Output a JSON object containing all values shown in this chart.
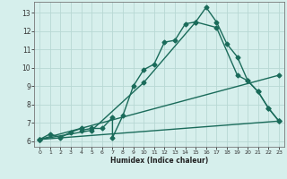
{
  "xlabel": "Humidex (Indice chaleur)",
  "bg_color": "#d6efec",
  "grid_color": "#b8d8d4",
  "line_color": "#1a6b5a",
  "xlim": [
    -0.5,
    23.5
  ],
  "ylim": [
    5.7,
    13.6
  ],
  "xticks": [
    0,
    1,
    2,
    3,
    4,
    5,
    6,
    7,
    8,
    9,
    10,
    11,
    12,
    13,
    14,
    15,
    16,
    17,
    18,
    19,
    20,
    21,
    22,
    23
  ],
  "yticks": [
    6,
    7,
    8,
    9,
    10,
    11,
    12,
    13
  ],
  "series1_x": [
    0,
    1,
    2,
    3,
    4,
    4,
    5,
    6,
    7,
    7,
    8,
    9,
    10,
    11,
    12,
    13,
    14,
    15,
    16,
    17,
    18,
    19,
    20,
    21,
    22,
    23
  ],
  "series1_y": [
    6.1,
    6.4,
    6.2,
    6.5,
    6.7,
    6.6,
    6.7,
    6.7,
    7.3,
    6.2,
    7.4,
    9.0,
    9.9,
    10.2,
    11.4,
    11.5,
    12.4,
    12.5,
    13.3,
    12.5,
    11.3,
    10.6,
    9.3,
    8.7,
    7.8,
    7.1
  ],
  "series2_x": [
    0,
    5,
    10,
    15,
    17,
    19,
    20,
    21,
    22,
    23
  ],
  "series2_y": [
    6.1,
    6.6,
    9.2,
    12.5,
    12.2,
    9.6,
    9.3,
    8.7,
    7.8,
    7.1
  ],
  "series3_x": [
    0,
    23
  ],
  "series3_y": [
    6.1,
    9.6
  ],
  "series4_x": [
    0,
    23
  ],
  "series4_y": [
    6.1,
    7.1
  ],
  "marker_size": 2.5,
  "linewidth": 1.0
}
